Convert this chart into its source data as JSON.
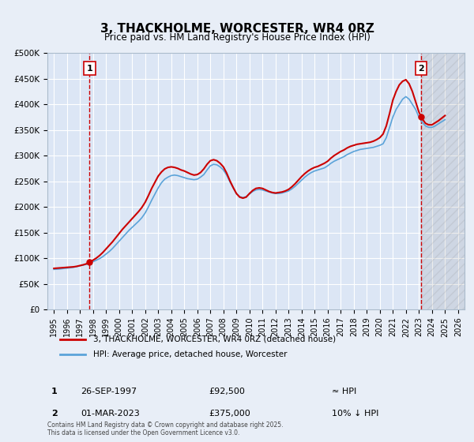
{
  "title": "3, THACKHOLME, WORCESTER, WR4 0RZ",
  "subtitle": "Price paid vs. HM Land Registry's House Price Index (HPI)",
  "xlabel": "",
  "ylabel": "",
  "bg_color": "#e8eef7",
  "plot_bg_color": "#dce6f5",
  "grid_color": "#ffffff",
  "hpi_color": "#5ba3d9",
  "price_color": "#cc0000",
  "vline_color": "#cc0000",
  "xmin": 1994.5,
  "xmax": 2026.5,
  "ymin": 0,
  "ymax": 500000,
  "yticks": [
    0,
    50000,
    100000,
    150000,
    200000,
    250000,
    300000,
    350000,
    400000,
    450000,
    500000
  ],
  "ytick_labels": [
    "£0",
    "£50K",
    "£100K",
    "£150K",
    "£200K",
    "£250K",
    "£300K",
    "£350K",
    "£400K",
    "£450K",
    "£500K"
  ],
  "xticks": [
    1995,
    1996,
    1997,
    1998,
    1999,
    2000,
    2001,
    2002,
    2003,
    2004,
    2005,
    2006,
    2007,
    2008,
    2009,
    2010,
    2011,
    2012,
    2013,
    2014,
    2015,
    2016,
    2017,
    2018,
    2019,
    2020,
    2021,
    2022,
    2023,
    2024,
    2025,
    2026
  ],
  "marker1_x": 1997.73,
  "marker1_y": 92500,
  "marker1_label": "1",
  "marker2_x": 2023.17,
  "marker2_y": 375000,
  "marker2_label": "2",
  "legend_price_label": "3, THACKHOLME, WORCESTER, WR4 0RZ (detached house)",
  "legend_hpi_label": "HPI: Average price, detached house, Worcester",
  "annotation1_num": "1",
  "annotation1_date": "26-SEP-1997",
  "annotation1_price": "£92,500",
  "annotation1_hpi": "≈ HPI",
  "annotation2_num": "2",
  "annotation2_date": "01-MAR-2023",
  "annotation2_price": "£375,000",
  "annotation2_hpi": "10% ↓ HPI",
  "footer": "Contains HM Land Registry data © Crown copyright and database right 2025.\nThis data is licensed under the Open Government Licence v3.0.",
  "hpi_data_x": [
    1995.0,
    1995.25,
    1995.5,
    1995.75,
    1996.0,
    1996.25,
    1996.5,
    1996.75,
    1997.0,
    1997.25,
    1997.5,
    1997.75,
    1998.0,
    1998.25,
    1998.5,
    1998.75,
    1999.0,
    1999.25,
    1999.5,
    1999.75,
    2000.0,
    2000.25,
    2000.5,
    2000.75,
    2001.0,
    2001.25,
    2001.5,
    2001.75,
    2002.0,
    2002.25,
    2002.5,
    2002.75,
    2003.0,
    2003.25,
    2003.5,
    2003.75,
    2004.0,
    2004.25,
    2004.5,
    2004.75,
    2005.0,
    2005.25,
    2005.5,
    2005.75,
    2006.0,
    2006.25,
    2006.5,
    2006.75,
    2007.0,
    2007.25,
    2007.5,
    2007.75,
    2008.0,
    2008.25,
    2008.5,
    2008.75,
    2009.0,
    2009.25,
    2009.5,
    2009.75,
    2010.0,
    2010.25,
    2010.5,
    2010.75,
    2011.0,
    2011.25,
    2011.5,
    2011.75,
    2012.0,
    2012.25,
    2012.5,
    2012.75,
    2013.0,
    2013.25,
    2013.5,
    2013.75,
    2014.0,
    2014.25,
    2014.5,
    2014.75,
    2015.0,
    2015.25,
    2015.5,
    2015.75,
    2016.0,
    2016.25,
    2016.5,
    2016.75,
    2017.0,
    2017.25,
    2017.5,
    2017.75,
    2018.0,
    2018.25,
    2018.5,
    2018.75,
    2019.0,
    2019.25,
    2019.5,
    2019.75,
    2020.0,
    2020.25,
    2020.5,
    2020.75,
    2021.0,
    2021.25,
    2021.5,
    2021.75,
    2022.0,
    2022.25,
    2022.5,
    2022.75,
    2023.0,
    2023.25,
    2023.5,
    2023.75,
    2024.0,
    2024.25,
    2024.5,
    2024.75,
    2025.0
  ],
  "hpi_data_y": [
    78000,
    78500,
    79000,
    79800,
    80500,
    81200,
    82000,
    83500,
    85000,
    86500,
    88000,
    90000,
    93000,
    96000,
    99000,
    103000,
    108000,
    113000,
    119000,
    126000,
    133000,
    140000,
    147000,
    154000,
    160000,
    166000,
    172000,
    179000,
    188000,
    200000,
    213000,
    225000,
    237000,
    247000,
    254000,
    258000,
    261000,
    262000,
    261000,
    259000,
    257000,
    255000,
    254000,
    253000,
    254000,
    258000,
    263000,
    272000,
    280000,
    283000,
    282000,
    278000,
    272000,
    262000,
    249000,
    237000,
    226000,
    220000,
    218000,
    220000,
    225000,
    230000,
    233000,
    234000,
    233000,
    231000,
    229000,
    227000,
    226000,
    226000,
    227000,
    229000,
    231000,
    235000,
    240000,
    246000,
    252000,
    258000,
    263000,
    267000,
    270000,
    272000,
    274000,
    276000,
    280000,
    285000,
    289000,
    292000,
    295000,
    298000,
    302000,
    305000,
    308000,
    310000,
    312000,
    313000,
    314000,
    315000,
    316000,
    318000,
    320000,
    323000,
    335000,
    355000,
    375000,
    390000,
    400000,
    410000,
    415000,
    410000,
    400000,
    390000,
    375000,
    365000,
    358000,
    355000,
    355000,
    358000,
    362000,
    366000,
    370000
  ],
  "price_data_x": [
    1995.0,
    1995.25,
    1995.5,
    1995.75,
    1996.0,
    1996.25,
    1996.5,
    1996.75,
    1997.0,
    1997.25,
    1997.5,
    1997.75,
    1998.0,
    1998.25,
    1998.5,
    1998.75,
    1999.0,
    1999.25,
    1999.5,
    1999.75,
    2000.0,
    2000.25,
    2000.5,
    2000.75,
    2001.0,
    2001.25,
    2001.5,
    2001.75,
    2002.0,
    2002.25,
    2002.5,
    2002.75,
    2003.0,
    2003.25,
    2003.5,
    2003.75,
    2004.0,
    2004.25,
    2004.5,
    2004.75,
    2005.0,
    2005.25,
    2005.5,
    2005.75,
    2006.0,
    2006.25,
    2006.5,
    2006.75,
    2007.0,
    2007.25,
    2007.5,
    2007.75,
    2008.0,
    2008.25,
    2008.5,
    2008.75,
    2009.0,
    2009.25,
    2009.5,
    2009.75,
    2010.0,
    2010.25,
    2010.5,
    2010.75,
    2011.0,
    2011.25,
    2011.5,
    2011.75,
    2012.0,
    2012.25,
    2012.5,
    2012.75,
    2013.0,
    2013.25,
    2013.5,
    2013.75,
    2014.0,
    2014.25,
    2014.5,
    2014.75,
    2015.0,
    2015.25,
    2015.5,
    2015.75,
    2016.0,
    2016.25,
    2016.5,
    2016.75,
    2017.0,
    2017.25,
    2017.5,
    2017.75,
    2018.0,
    2018.25,
    2018.5,
    2018.75,
    2019.0,
    2019.25,
    2019.5,
    2019.75,
    2020.0,
    2020.25,
    2020.5,
    2020.75,
    2021.0,
    2021.25,
    2021.5,
    2021.75,
    2022.0,
    2022.25,
    2022.5,
    2022.75,
    2023.0,
    2023.25,
    2023.5,
    2023.75,
    2024.0,
    2024.25,
    2024.5,
    2024.75,
    2025.0
  ],
  "price_data_y": [
    80000,
    80500,
    81000,
    81500,
    82000,
    82500,
    83000,
    84000,
    85500,
    87000,
    89000,
    92500,
    96000,
    100000,
    105000,
    111000,
    118000,
    125000,
    132000,
    140000,
    148000,
    156000,
    163000,
    170000,
    177000,
    184000,
    191000,
    199000,
    209000,
    222000,
    236000,
    248000,
    260000,
    268000,
    274000,
    277000,
    278000,
    277000,
    275000,
    272000,
    270000,
    267000,
    264000,
    262000,
    263000,
    267000,
    274000,
    283000,
    290000,
    292000,
    290000,
    285000,
    278000,
    266000,
    251000,
    238000,
    226000,
    219000,
    217000,
    219000,
    226000,
    232000,
    236000,
    237000,
    236000,
    233000,
    230000,
    228000,
    227000,
    228000,
    229000,
    231000,
    234000,
    239000,
    245000,
    252000,
    259000,
    265000,
    270000,
    274000,
    277000,
    279000,
    282000,
    285000,
    289000,
    295000,
    300000,
    304000,
    308000,
    311000,
    315000,
    318000,
    320000,
    322000,
    323000,
    324000,
    325000,
    326000,
    328000,
    331000,
    335000,
    342000,
    358000,
    382000,
    408000,
    425000,
    438000,
    445000,
    448000,
    440000,
    425000,
    405000,
    385000,
    372000,
    363000,
    360000,
    360000,
    364000,
    368000,
    373000,
    378000
  ]
}
